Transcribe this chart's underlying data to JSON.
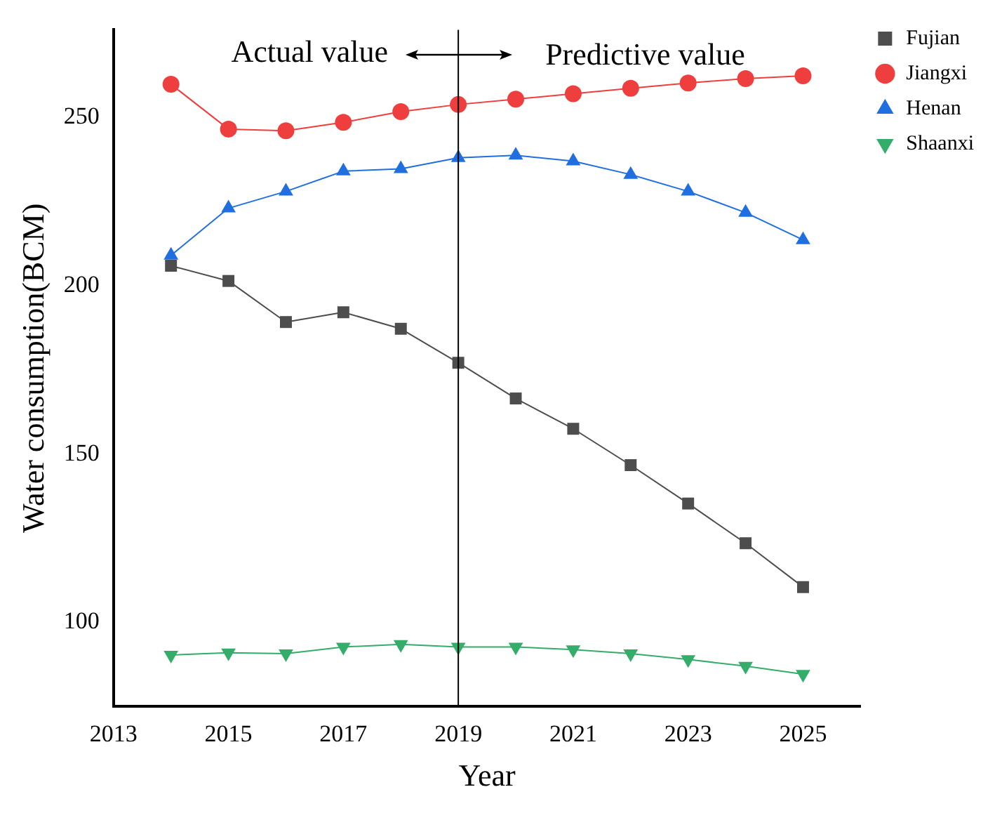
{
  "chart_data": {
    "type": "line",
    "xlabel": "Year",
    "ylabel": "Water consumption(BCM)",
    "x": [
      2014,
      2015,
      2016,
      2017,
      2018,
      2019,
      2020,
      2021,
      2022,
      2023,
      2024,
      2025
    ],
    "series": [
      {
        "name": "Fujian",
        "color": "#4d4d4d",
        "marker": "square",
        "values": [
          205.9,
          201.4,
          189.2,
          192.1,
          187.2,
          177.1,
          166.5,
          157.5,
          146.7,
          135.3,
          123.5,
          110.5
        ]
      },
      {
        "name": "Jiangxi",
        "color": "#ef3e3e",
        "marker": "circle",
        "values": [
          259.8,
          246.5,
          246,
          248.5,
          251.7,
          253.8,
          255.4,
          257,
          258.6,
          260.2,
          261.5,
          262.3
        ]
      },
      {
        "name": "Henan",
        "color": "#1f6fe0",
        "marker": "triangle",
        "values": [
          209,
          223,
          228,
          234,
          234.7,
          238,
          238.7,
          237,
          233,
          228,
          221.7,
          213.6
        ]
      },
      {
        "name": "Shaanxi",
        "color": "#35ad6a",
        "marker": "triangle-down",
        "values": [
          90.3,
          91,
          90.7,
          92.7,
          93.5,
          92.7,
          92.7,
          91.9,
          90.7,
          89,
          87,
          84.6
        ]
      }
    ],
    "xlim": [
      2013,
      2026
    ],
    "xticks": [
      2013,
      2015,
      2017,
      2019,
      2021,
      2023,
      2025
    ],
    "ylim": [
      75,
      276
    ],
    "yticks": [
      100,
      150,
      200,
      250
    ],
    "ref_lines": [
      {
        "axis": "x",
        "value": 2019,
        "color": "#000000"
      }
    ],
    "annotations": [
      "Actual value",
      "Predictive value"
    ],
    "grid": false,
    "legend": "top right",
    "line_style": "solid"
  }
}
